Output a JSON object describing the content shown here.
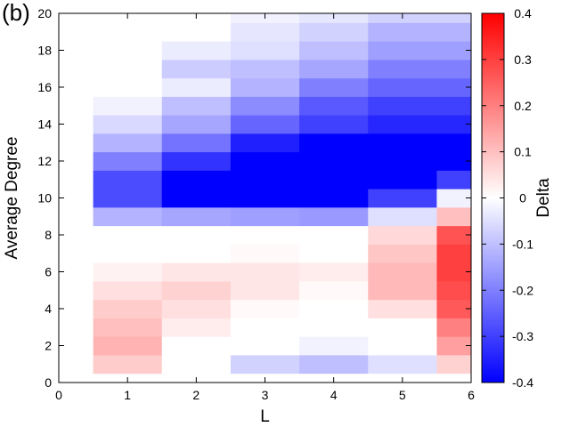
{
  "panel_label": "(b)",
  "chart_data": {
    "type": "heatmap",
    "xlabel": "L",
    "ylabel": "Average Degree",
    "colorbar_label": "Delta",
    "xlim": [
      0,
      6
    ],
    "ylim": [
      0,
      20
    ],
    "clim": [
      -0.4,
      0.4
    ],
    "colormap": {
      "low": "#0000ff",
      "mid": "#ffffff",
      "high": "#ff0000"
    },
    "x_ticks": [
      "0",
      "1",
      "2",
      "3",
      "4",
      "5",
      "6"
    ],
    "y_ticks": [
      "0",
      "2",
      "4",
      "6",
      "8",
      "10",
      "12",
      "14",
      "16",
      "18",
      "20"
    ],
    "colorbar_ticks": [
      "0.4",
      "0.3",
      "0.2",
      "0.1",
      "0",
      "-0.1",
      "-0.2",
      "-0.3",
      "-0.4"
    ],
    "x_centers": [
      1,
      2,
      3,
      4,
      5,
      6
    ],
    "y_centers": [
      1,
      2,
      3,
      4,
      5,
      6,
      7,
      8,
      9,
      10,
      11,
      12,
      13,
      14,
      15,
      16,
      17,
      18,
      19,
      20
    ],
    "values": [
      [
        0.08,
        0.0,
        -0.07,
        -0.1,
        -0.05,
        0.07
      ],
      [
        0.12,
        0.0,
        0.0,
        -0.02,
        0.0,
        0.15
      ],
      [
        0.1,
        0.03,
        0.0,
        0.0,
        0.0,
        0.2
      ],
      [
        0.08,
        0.05,
        0.01,
        0.0,
        0.05,
        0.26
      ],
      [
        0.05,
        0.07,
        0.04,
        0.01,
        0.11,
        0.28
      ],
      [
        0.02,
        0.04,
        0.04,
        0.03,
        0.11,
        0.3
      ],
      [
        0.0,
        0.0,
        0.01,
        0.0,
        0.09,
        0.3
      ],
      [
        0.0,
        0.0,
        0.0,
        0.0,
        0.06,
        0.27
      ],
      [
        -0.12,
        -0.14,
        -0.15,
        -0.16,
        -0.05,
        0.1
      ],
      [
        -0.28,
        -0.4,
        -0.4,
        -0.4,
        -0.3,
        -0.02
      ],
      [
        -0.28,
        -0.4,
        -0.4,
        -0.4,
        -0.4,
        -0.3
      ],
      [
        -0.2,
        -0.32,
        -0.4,
        -0.4,
        -0.4,
        -0.4
      ],
      [
        -0.12,
        -0.22,
        -0.35,
        -0.4,
        -0.4,
        -0.4
      ],
      [
        -0.06,
        -0.14,
        -0.24,
        -0.3,
        -0.34,
        -0.34
      ],
      [
        -0.02,
        -0.1,
        -0.18,
        -0.26,
        -0.3,
        -0.3
      ],
      [
        0.0,
        -0.03,
        -0.12,
        -0.2,
        -0.24,
        -0.24
      ],
      [
        0.0,
        -0.08,
        -0.1,
        -0.14,
        -0.2,
        -0.2
      ],
      [
        0.0,
        -0.03,
        -0.05,
        -0.1,
        -0.15,
        -0.15
      ],
      [
        0.0,
        0.0,
        -0.04,
        -0.07,
        -0.12,
        -0.12
      ],
      [
        0.0,
        0.0,
        -0.02,
        -0.04,
        -0.07,
        -0.07
      ]
    ]
  }
}
